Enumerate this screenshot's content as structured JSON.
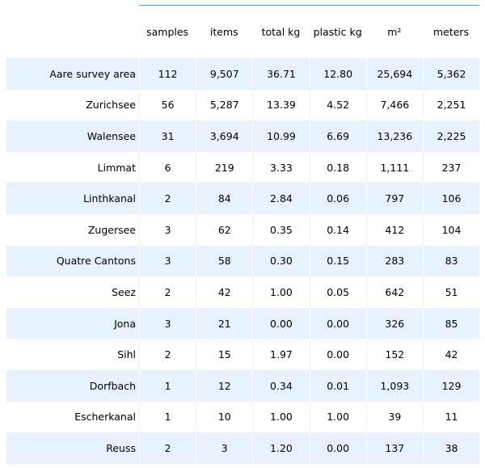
{
  "chart_data": {
    "type": "table",
    "columns": [
      "samples",
      "items",
      "total kg",
      "plastic kg",
      "m²",
      "meters"
    ],
    "rows": [
      {
        "label": "Aare survey area",
        "values": [
          "112",
          "9,507",
          "36.71",
          "12.80",
          "25,694",
          "5,362"
        ]
      },
      {
        "label": "Zurichsee",
        "values": [
          "56",
          "5,287",
          "13.39",
          "4.52",
          "7,466",
          "2,251"
        ]
      },
      {
        "label": "Walensee",
        "values": [
          "31",
          "3,694",
          "10.99",
          "6.69",
          "13,236",
          "2,225"
        ]
      },
      {
        "label": "Limmat",
        "values": [
          "6",
          "219",
          "3.33",
          "0.18",
          "1,111",
          "237"
        ]
      },
      {
        "label": "Linthkanal",
        "values": [
          "2",
          "84",
          "2.84",
          "0.06",
          "797",
          "106"
        ]
      },
      {
        "label": "Zugersee",
        "values": [
          "3",
          "62",
          "0.35",
          "0.14",
          "412",
          "104"
        ]
      },
      {
        "label": "Quatre Cantons",
        "values": [
          "3",
          "58",
          "0.30",
          "0.15",
          "283",
          "83"
        ]
      },
      {
        "label": "Seez",
        "values": [
          "2",
          "42",
          "1.00",
          "0.05",
          "642",
          "51"
        ]
      },
      {
        "label": "Jona",
        "values": [
          "3",
          "21",
          "0.00",
          "0.00",
          "326",
          "85"
        ]
      },
      {
        "label": "Sihl",
        "values": [
          "2",
          "15",
          "1.97",
          "0.00",
          "152",
          "42"
        ]
      },
      {
        "label": "Dorfbach",
        "values": [
          "1",
          "12",
          "0.34",
          "0.01",
          "1,093",
          "129"
        ]
      },
      {
        "label": "Escherkanal",
        "values": [
          "1",
          "10",
          "1.00",
          "1.00",
          "39",
          "11"
        ]
      },
      {
        "label": "Reuss",
        "values": [
          "2",
          "3",
          "1.20",
          "0.00",
          "137",
          "38"
        ]
      }
    ]
  }
}
